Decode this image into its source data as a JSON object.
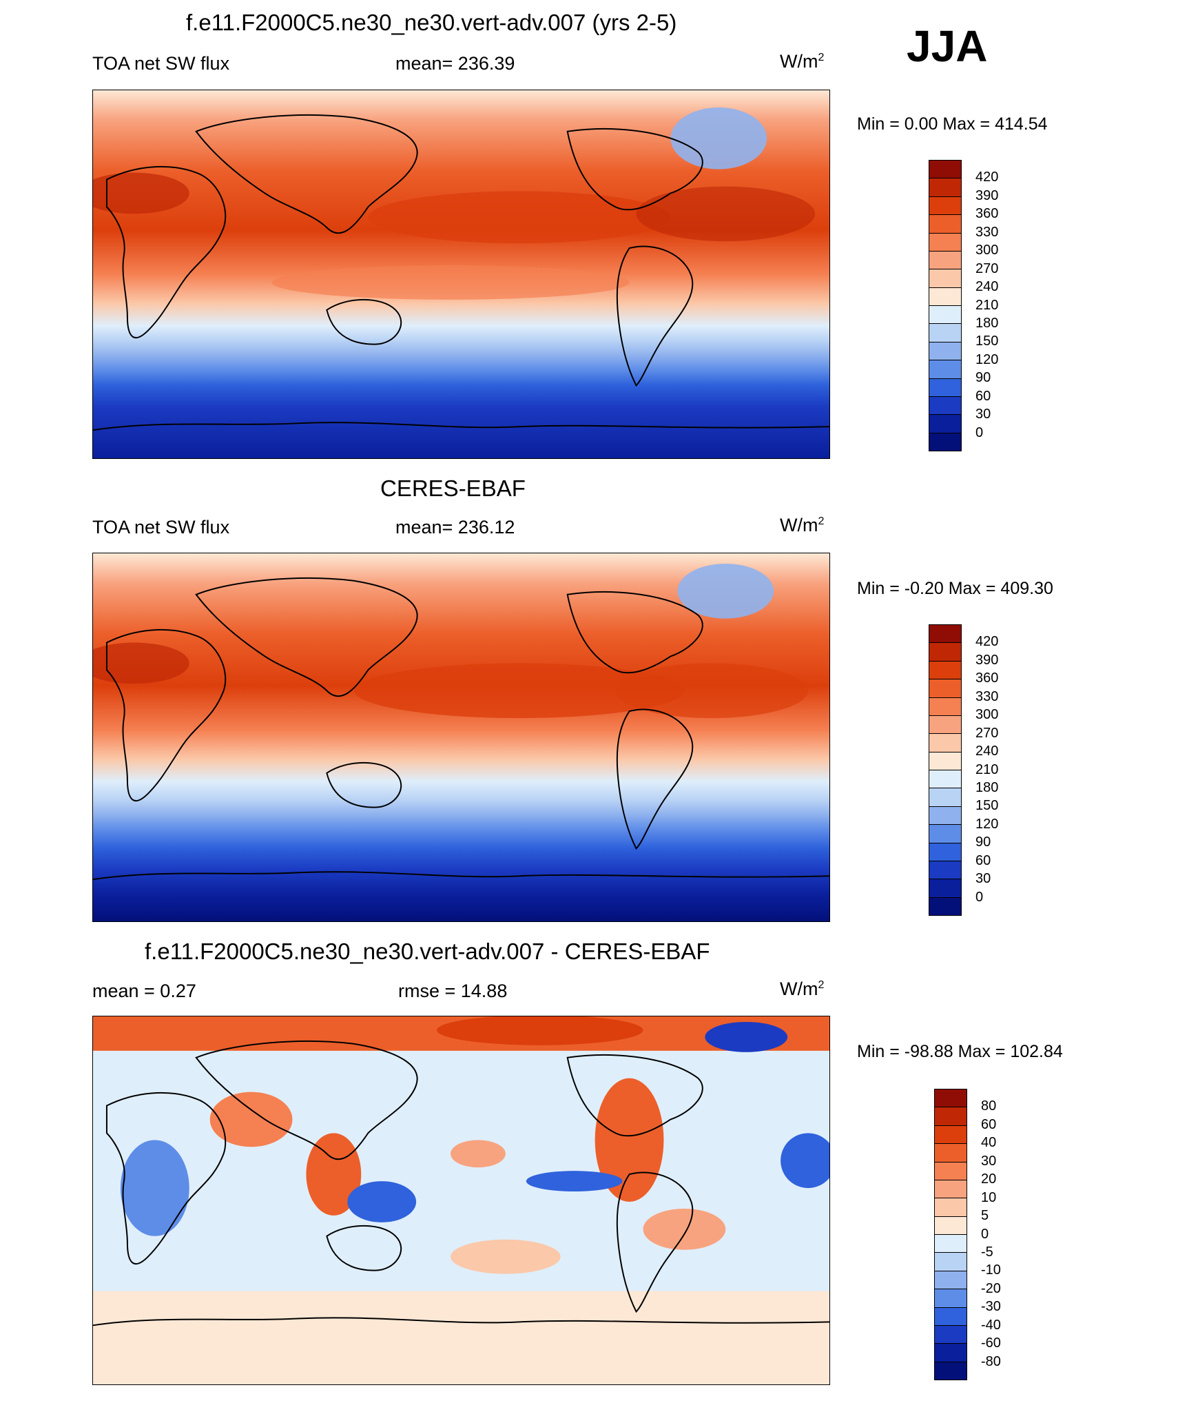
{
  "season": "JJA",
  "panels": [
    {
      "title": "f.e11.F2000C5.ne30_ne30.vert-adv.007 (yrs 2-5)",
      "left": "TOA net SW flux",
      "center": "mean= 236.39",
      "units_base": "W/m",
      "units_exp": "2",
      "minmax": "Min =   0.00 Max = 414.54",
      "cbar_labels": [
        "420",
        "390",
        "360",
        "330",
        "300",
        "270",
        "240",
        "210",
        "180",
        "150",
        "120",
        "90",
        "60",
        "30",
        "0"
      ],
      "cbar_colors": [
        "#8f0d05",
        "#c02805",
        "#dc3f0c",
        "#ec5f2a",
        "#f58052",
        "#f8a37f",
        "#fbc8a9",
        "#fde8d5",
        "#dfeefb",
        "#b9d3f5",
        "#8fb2ee",
        "#5e8de8",
        "#2f62dc",
        "#1b3bc2",
        "#0a1f9c",
        "#03107a"
      ]
    },
    {
      "title": "CERES-EBAF",
      "left": "TOA net SW flux",
      "center": "mean= 236.12",
      "units_base": "W/m",
      "units_exp": "2",
      "minmax": "Min =  -0.20 Max = 409.30",
      "cbar_labels": [
        "420",
        "390",
        "360",
        "330",
        "300",
        "270",
        "240",
        "210",
        "180",
        "150",
        "120",
        "90",
        "60",
        "30",
        "0"
      ],
      "cbar_colors": [
        "#8f0d05",
        "#c02805",
        "#dc3f0c",
        "#ec5f2a",
        "#f58052",
        "#f8a37f",
        "#fbc8a9",
        "#fde8d5",
        "#dfeefb",
        "#b9d3f5",
        "#8fb2ee",
        "#5e8de8",
        "#2f62dc",
        "#1b3bc2",
        "#0a1f9c",
        "#03107a"
      ]
    },
    {
      "title": "f.e11.F2000C5.ne30_ne30.vert-adv.007 - CERES-EBAF",
      "left": "mean =   0.27",
      "center": "rmse =  14.88",
      "units_base": "W/m",
      "units_exp": "2",
      "minmax": "Min = -98.88 Max = 102.84",
      "cbar_labels": [
        "80",
        "60",
        "40",
        "30",
        "20",
        "10",
        "5",
        "0",
        "-5",
        "-10",
        "-20",
        "-30",
        "-40",
        "-60",
        "-80"
      ],
      "cbar_colors": [
        "#8f0d05",
        "#c02805",
        "#dc3f0c",
        "#ec5f2a",
        "#f58052",
        "#f8a37f",
        "#fbc8a9",
        "#fde8d5",
        "#dfeefb",
        "#b9d3f5",
        "#8fb2ee",
        "#5e8de8",
        "#2f62dc",
        "#1b3bc2",
        "#0a1f9c",
        "#03107a"
      ]
    }
  ]
}
